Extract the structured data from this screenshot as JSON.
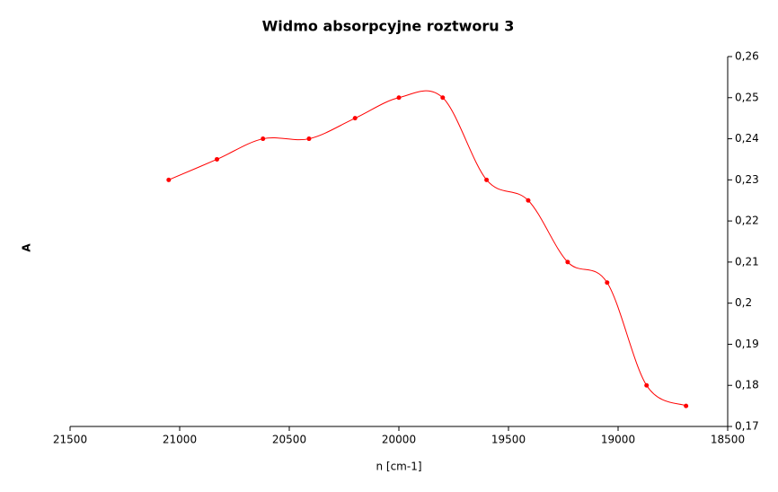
{
  "chart_data": {
    "type": "line",
    "title": "Widmo absorpcyjne roztworu 3",
    "x_label": "n [cm-1]",
    "y_label": "A",
    "x": [
      21050,
      20830,
      20620,
      20410,
      20200,
      20000,
      19800,
      19600,
      19410,
      19230,
      19050,
      18870,
      18690
    ],
    "series": [
      {
        "name": "A",
        "color": "#ff0000",
        "values": [
          0.23,
          0.235,
          0.24,
          0.24,
          0.245,
          0.25,
          0.25,
          0.23,
          0.225,
          0.21,
          0.205,
          0.18,
          0.175
        ]
      }
    ],
    "xlim": [
      21500,
      18500
    ],
    "xticks": [
      21500,
      21000,
      20500,
      20000,
      19500,
      19000,
      18500
    ],
    "ylim": [
      0.17,
      0.26
    ],
    "yticks": [
      {
        "value": 0.17,
        "label": "0,17"
      },
      {
        "value": 0.18,
        "label": "0,18"
      },
      {
        "value": 0.19,
        "label": "0,19"
      },
      {
        "value": 0.2,
        "label": "0,2"
      },
      {
        "value": 0.21,
        "label": "0,21"
      },
      {
        "value": 0.22,
        "label": "0,22"
      },
      {
        "value": 0.23,
        "label": "0,23"
      },
      {
        "value": 0.24,
        "label": "0,24"
      },
      {
        "value": 0.25,
        "label": "0,25"
      },
      {
        "value": 0.26,
        "label": "0,26"
      }
    ],
    "y_axis_side": "right",
    "grid": false
  }
}
